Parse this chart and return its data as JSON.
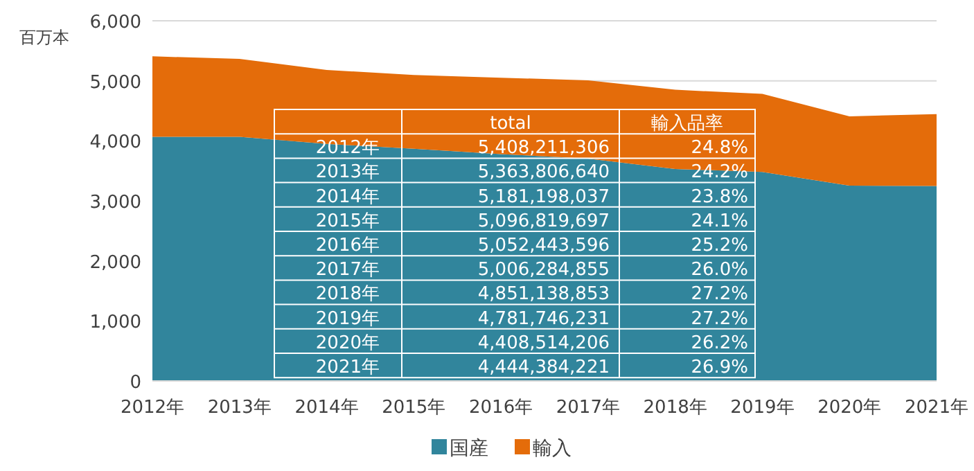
{
  "chart_data": {
    "type": "area",
    "stacked": true,
    "ylabel": "百万本",
    "categories": [
      "2012年",
      "2013年",
      "2014年",
      "2015年",
      "2016年",
      "2017年",
      "2018年",
      "2019年",
      "2020年",
      "2021年"
    ],
    "series": [
      {
        "name": "国産",
        "color": "#31859c",
        "values": [
          4067,
          4066,
          3948,
          3869,
          3779,
          3705,
          3532,
          3481,
          3254,
          3249
        ]
      },
      {
        "name": "輸入",
        "color": "#e46c0a",
        "values": [
          1341,
          1298,
          1233,
          1228,
          1273,
          1302,
          1319,
          1301,
          1155,
          1196
        ]
      }
    ],
    "ylim": [
      0,
      6000
    ],
    "yticks": [
      0,
      {
        "value": 1000,
        "label": "1,000"
      },
      {
        "value": 2000,
        "label": "2,000"
      },
      {
        "value": 3000,
        "label": "3,000"
      },
      {
        "value": 4000,
        "label": "4,000"
      },
      {
        "value": 5000,
        "label": "5,000"
      },
      {
        "value": 6000,
        "label": "6,000"
      }
    ],
    "grid": "y",
    "legend": "bottom",
    "annotations": [
      "total",
      "輸入品率",
      "2012年",
      "5,408,211,306",
      "24.8%",
      "2013年",
      "5,363,806,640",
      "24.2%",
      "2014年",
      "5,181,198,037",
      "23.8%",
      "2015年",
      "5,096,819,697",
      "24.1%",
      "2016年",
      "5,052,443,596",
      "25.2%",
      "2017年",
      "5,006,284,855",
      "26.0%",
      "2018年",
      "4,851,138,853",
      "27.2%",
      "2019年",
      "4,781,746,231",
      "27.2%",
      "2020年",
      "4,408,514,206",
      "26.2%",
      "2021年",
      "4,444,384,221",
      "26.9%"
    ]
  }
}
